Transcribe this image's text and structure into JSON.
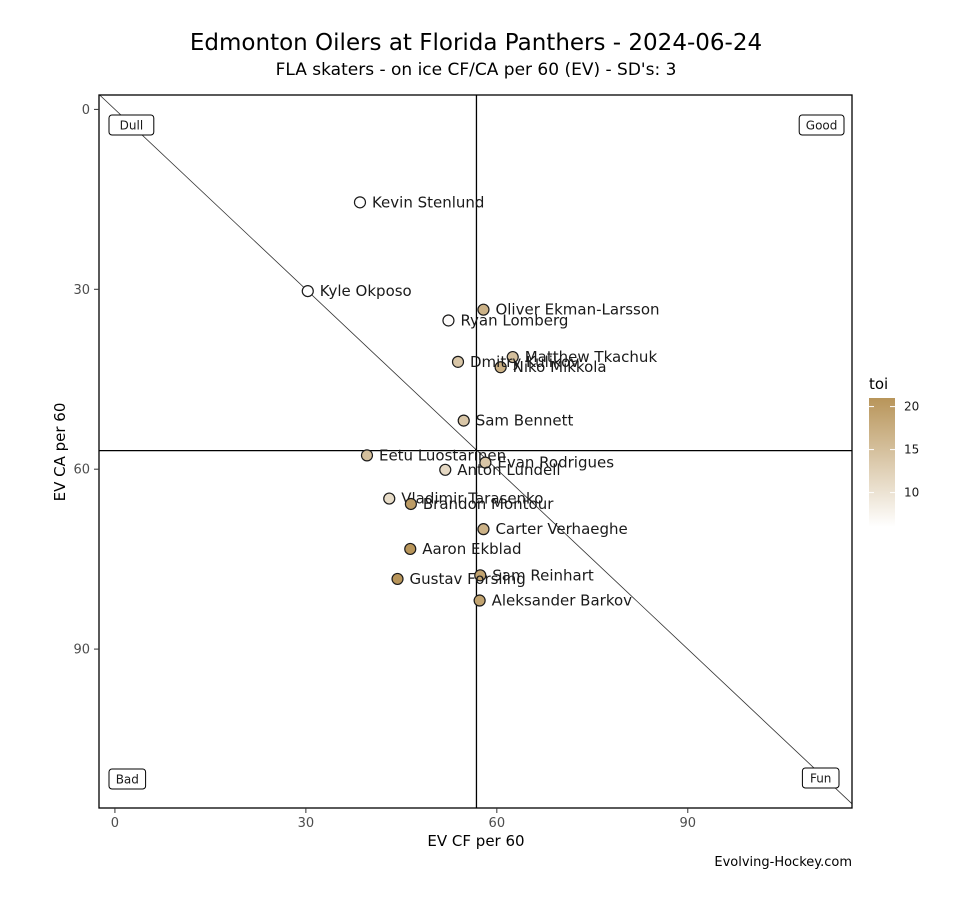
{
  "chart_data": {
    "type": "scatter",
    "title": "Edmonton Oilers at Florida Panthers - 2024-06-24",
    "subtitle": "FLA skaters - on ice CF/CA per 60 (EV) - SD's: 3",
    "xlabel": "EV CF per 60",
    "ylabel": "EV CA per 60",
    "xlim": [
      -2.5,
      115.8
    ],
    "ylim": [
      -2.4,
      116.5
    ],
    "y_reversed": true,
    "x_ticks": [
      0,
      30,
      60,
      90
    ],
    "y_ticks": [
      0,
      30,
      60,
      90
    ],
    "reference_lines": {
      "vline_x": 56.8,
      "hline_y": 56.9,
      "diagonal": "y = x"
    },
    "grid": false,
    "corner_labels": {
      "top_left": "Dull",
      "top_right": "Good",
      "bottom_left": "Bad",
      "bottom_right": "Fun"
    },
    "legend": {
      "title": "toi",
      "position": "right",
      "ticks": [
        10,
        15,
        20
      ],
      "color_low": "#ffffff",
      "color_high": "#b8955a",
      "range": [
        6,
        21
      ]
    },
    "points": [
      {
        "name": "Kevin Stenlund",
        "x": 38.5,
        "y": 15.5,
        "toi": 6
      },
      {
        "name": "Kyle Okposo",
        "x": 30.3,
        "y": 30.3,
        "toi": 6
      },
      {
        "name": "Oliver Ekman-Larsson",
        "x": 57.9,
        "y": 33.4,
        "toi": 17
      },
      {
        "name": "Ryan Lomberg",
        "x": 52.4,
        "y": 35.2,
        "toi": 6.5
      },
      {
        "name": "Matthew Tkachuk",
        "x": 62.5,
        "y": 41.3,
        "toi": 15
      },
      {
        "name": "Niko Mikkola",
        "x": 60.6,
        "y": 43.0,
        "toi": 17
      },
      {
        "name": "Dmitry Kulikov",
        "x": 53.9,
        "y": 42.1,
        "toi": 14
      },
      {
        "name": "Sam Bennett",
        "x": 54.8,
        "y": 51.9,
        "toi": 14
      },
      {
        "name": "Eetu Luostarinen",
        "x": 39.6,
        "y": 57.7,
        "toi": 15
      },
      {
        "name": "Evan Rodrigues",
        "x": 58.2,
        "y": 58.9,
        "toi": 14
      },
      {
        "name": "Anton Lundell",
        "x": 51.9,
        "y": 60.1,
        "toi": 11.5
      },
      {
        "name": "Vladimir Tarasenko",
        "x": 43.1,
        "y": 64.9,
        "toi": 11
      },
      {
        "name": "Brandon Montour",
        "x": 46.5,
        "y": 65.8,
        "toi": 20
      },
      {
        "name": "Carter Verhaeghe",
        "x": 57.9,
        "y": 70.0,
        "toi": 17
      },
      {
        "name": "Aaron Ekblad",
        "x": 46.4,
        "y": 73.3,
        "toi": 21
      },
      {
        "name": "Sam Reinhart",
        "x": 57.4,
        "y": 77.7,
        "toi": 19
      },
      {
        "name": "Gustav Forsling",
        "x": 44.4,
        "y": 78.3,
        "toi": 21.5
      },
      {
        "name": "Aleksander Barkov",
        "x": 57.3,
        "y": 81.9,
        "toi": 19
      }
    ]
  },
  "caption": "Evolving-Hockey.com"
}
